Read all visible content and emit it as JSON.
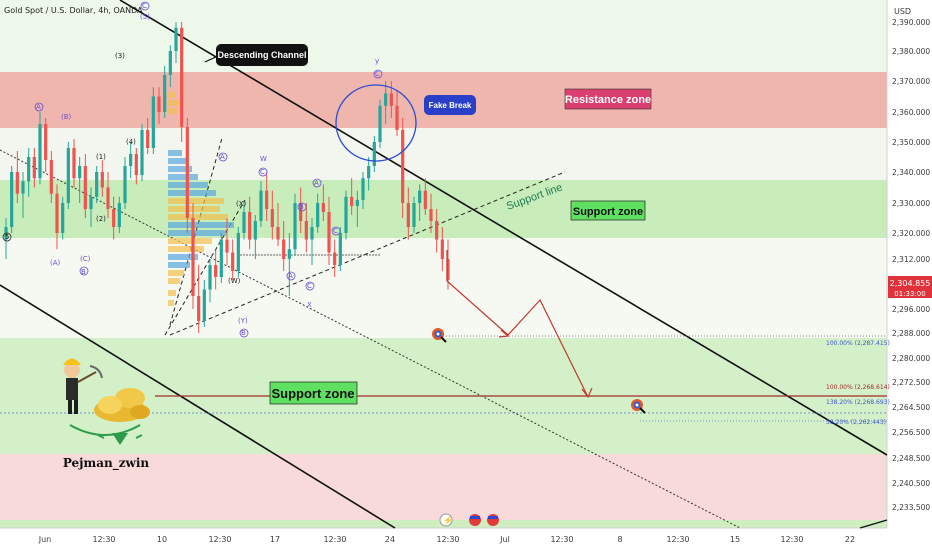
{
  "header": {
    "symbol": "Gold Spot / U.S. Dollar, 4h, OANDA",
    "currency": "USD"
  },
  "price": {
    "last": "2,304.855",
    "countdown": "01:33:00"
  },
  "annotations": {
    "descending_channel": "Descending Channel",
    "fake_break": "Fake Break",
    "resistance_zone": "Resistance zone",
    "support_zone_upper": "Support zone",
    "support_line": "Support line",
    "support_zone_lower": "Support zone",
    "author": "Pejman_zwin"
  },
  "fib_labels": [
    "100.00% (2,287.415)",
    "100.00% (2,268.614)",
    "138.20% (2,268.693)",
    "38.20% (2,262.443)"
  ],
  "wave_labels": {
    "five_top": "(5)",
    "c_top": "C",
    "three": "(3)",
    "four": "(4)",
    "one": "(1)",
    "two": "(2)",
    "a_paren": "(A)",
    "b_paren": "(B)",
    "c_paren": "(C)",
    "a_left": "A",
    "b_left": "(B)",
    "a_low": "(A)",
    "c_low": "(C)",
    "b_low": "B",
    "w": "W",
    "c_mid": "C",
    "a_mid": "A",
    "x_mid": "(X)",
    "y_mid": "(Y)",
    "b_mid": "B",
    "w_paren": "(W)",
    "a_mid2": "A",
    "c_mid2": "C",
    "x_low": "X",
    "b_right": "B",
    "a_right": "A",
    "c_right": "C",
    "y_top": "y",
    "c_y": "C",
    "five_left": "5"
  },
  "chart_data": {
    "type": "candlestick",
    "title": "Gold Spot / U.S. Dollar, 4h, OANDA",
    "y_axis_ticks": [
      "2,390.000",
      "2,380.000",
      "2,370.000",
      "2,360.000",
      "2,350.000",
      "2,340.000",
      "2,330.000",
      "2,320.000",
      "2,312.000",
      "2,304.000",
      "2,296.000",
      "2,288.000",
      "2,280.000",
      "2,272.500",
      "2,264.500",
      "2,256.500",
      "2,248.500",
      "2,240.500",
      "2,233.500"
    ],
    "x_axis_ticks": [
      "Jun",
      "12:30",
      "10",
      "12:30",
      "17",
      "12:30",
      "24",
      "12:30",
      "Jul",
      "12:30",
      "8",
      "12:30",
      "15",
      "12:30",
      "22"
    ],
    "ylim": [
      2228,
      2395
    ],
    "last_price": 2304.855,
    "zones": [
      {
        "name": "Resistance zone",
        "from": 2356,
        "to": 2373,
        "color": "#e8a49c"
      },
      {
        "name": "Support zone",
        "from": 2318,
        "to": 2337,
        "color": "#b9e6a9"
      },
      {
        "name": "Support zone",
        "from": 2250,
        "to": 2285,
        "color": "#c8ecba"
      }
    ],
    "levels": [
      2287.415,
      2268.614,
      2268.693,
      2262.443
    ],
    "series": [
      {
        "ohlc": [
          [
            2318,
            2325,
            2312,
            2322
          ],
          [
            2322,
            2342,
            2320,
            2340
          ],
          [
            2340,
            2347,
            2330,
            2333
          ],
          [
            2333,
            2340,
            2325,
            2337
          ],
          [
            2337,
            2348,
            2332,
            2345
          ],
          [
            2345,
            2348,
            2335,
            2338
          ],
          [
            2338,
            2360,
            2336,
            2356
          ],
          [
            2356,
            2358,
            2340,
            2344
          ],
          [
            2344,
            2347,
            2330,
            2333
          ],
          [
            2333,
            2336,
            2315,
            2320
          ],
          [
            2320,
            2332,
            2318,
            2330
          ],
          [
            2330,
            2350,
            2328,
            2348
          ],
          [
            2348,
            2351,
            2335,
            2338
          ],
          [
            2338,
            2345,
            2330,
            2342
          ],
          [
            2342,
            2346,
            2325,
            2328
          ],
          [
            2328,
            2335,
            2322,
            2332
          ],
          [
            2332,
            2342,
            2330,
            2340
          ],
          [
            2340,
            2344,
            2332,
            2335
          ],
          [
            2335,
            2340,
            2325,
            2328
          ],
          [
            2328,
            2332,
            2318,
            2322
          ],
          [
            2322,
            2332,
            2320,
            2330
          ],
          [
            2330,
            2345,
            2328,
            2342
          ],
          [
            2342,
            2350,
            2338,
            2346
          ],
          [
            2346,
            2348,
            2336,
            2339
          ],
          [
            2339,
            2356,
            2337,
            2354
          ],
          [
            2354,
            2358,
            2346,
            2348
          ],
          [
            2348,
            2368,
            2346,
            2365
          ],
          [
            2365,
            2368,
            2356,
            2360
          ],
          [
            2360,
            2375,
            2358,
            2372
          ],
          [
            2372,
            2382,
            2368,
            2380
          ],
          [
            2380,
            2390,
            2376,
            2388
          ],
          [
            2388,
            2390,
            2350,
            2355
          ],
          [
            2355,
            2358,
            2320,
            2325
          ],
          [
            2325,
            2330,
            2296,
            2300
          ],
          [
            2300,
            2310,
            2288,
            2292
          ],
          [
            2292,
            2305,
            2290,
            2302
          ],
          [
            2302,
            2312,
            2298,
            2310
          ],
          [
            2310,
            2315,
            2302,
            2306
          ],
          [
            2306,
            2320,
            2304,
            2318
          ],
          [
            2318,
            2325,
            2310,
            2314
          ],
          [
            2314,
            2318,
            2305,
            2308
          ],
          [
            2308,
            2322,
            2306,
            2320
          ],
          [
            2320,
            2330,
            2318,
            2327
          ],
          [
            2327,
            2332,
            2315,
            2318
          ],
          [
            2318,
            2326,
            2312,
            2324
          ],
          [
            2324,
            2337,
            2322,
            2334
          ],
          [
            2334,
            2340,
            2324,
            2328
          ],
          [
            2328,
            2334,
            2318,
            2322
          ],
          [
            2322,
            2330,
            2316,
            2318
          ],
          [
            2318,
            2324,
            2308,
            2312
          ],
          [
            2312,
            2320,
            2300,
            2315
          ],
          [
            2315,
            2333,
            2313,
            2330
          ],
          [
            2330,
            2335,
            2320,
            2324
          ],
          [
            2324,
            2330,
            2314,
            2318
          ],
          [
            2318,
            2325,
            2310,
            2322
          ],
          [
            2322,
            2333,
            2320,
            2330
          ],
          [
            2330,
            2336,
            2324,
            2327
          ],
          [
            2327,
            2332,
            2310,
            2314
          ],
          [
            2314,
            2318,
            2306,
            2310
          ],
          [
            2310,
            2322,
            2308,
            2320
          ],
          [
            2320,
            2334,
            2318,
            2332
          ],
          [
            2332,
            2338,
            2326,
            2329
          ],
          [
            2329,
            2334,
            2322,
            2331
          ],
          [
            2331,
            2340,
            2328,
            2338
          ],
          [
            2338,
            2345,
            2334,
            2342
          ],
          [
            2342,
            2352,
            2340,
            2350
          ],
          [
            2350,
            2364,
            2348,
            2362
          ],
          [
            2362,
            2370,
            2356,
            2366
          ],
          [
            2366,
            2370,
            2358,
            2362
          ],
          [
            2362,
            2367,
            2352,
            2354
          ],
          [
            2354,
            2358,
            2325,
            2330
          ],
          [
            2330,
            2335,
            2318,
            2322
          ],
          [
            2322,
            2332,
            2320,
            2330
          ],
          [
            2330,
            2336,
            2324,
            2334
          ],
          [
            2334,
            2338,
            2326,
            2328
          ],
          [
            2328,
            2333,
            2320,
            2324
          ],
          [
            2324,
            2328,
            2314,
            2318
          ],
          [
            2318,
            2322,
            2308,
            2312
          ],
          [
            2312,
            2318,
            2302,
            2305
          ]
        ]
      }
    ],
    "forecast": [
      [
        447,
        250
      ],
      [
        447,
        281
      ],
      [
        508,
        335
      ],
      [
        540,
        300
      ],
      [
        588,
        397
      ]
    ]
  }
}
